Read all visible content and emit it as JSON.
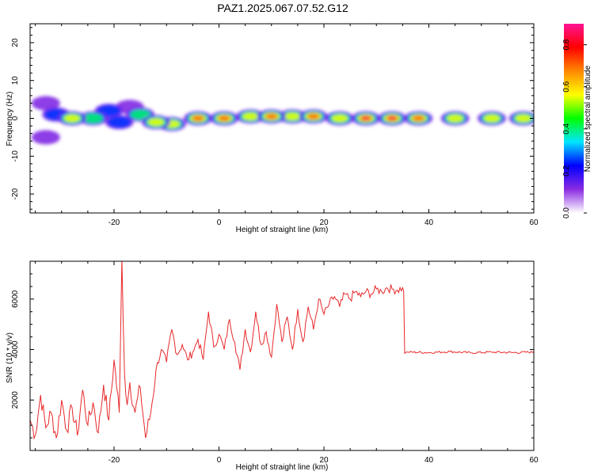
{
  "title": "PAZ1.2025.067.07.52.G12",
  "chart_data": [
    {
      "type": "heatmap",
      "xlabel": "Height of straight line (km)",
      "ylabel": "Frequency (Hz)",
      "xlim": [
        -36,
        60
      ],
      "ylim": [
        -25,
        25
      ],
      "xticks": [
        -20,
        0,
        20,
        40,
        60
      ],
      "yticks": [
        -20,
        -10,
        0,
        10,
        20
      ],
      "colorbar": {
        "label": "Normalized spectral amplitude",
        "ticks": [
          0.0,
          0.2,
          0.4,
          0.6,
          0.8
        ],
        "range": [
          0.0,
          0.9
        ],
        "colors": [
          "#ffffff",
          "#8a2be2",
          "#0000ff",
          "#00e5ff",
          "#00ff00",
          "#ffff00",
          "#ff8800",
          "#ff0000",
          "#ff1493"
        ]
      },
      "blobs": [
        {
          "x": -33,
          "y": 4,
          "a": 0.2
        },
        {
          "x": -33,
          "y": -5,
          "a": 0.15
        },
        {
          "x": -31,
          "y": 1,
          "a": 0.35
        },
        {
          "x": -28,
          "y": 0,
          "a": 0.55
        },
        {
          "x": -24,
          "y": 0,
          "a": 0.45
        },
        {
          "x": -21,
          "y": 2,
          "a": 0.25
        },
        {
          "x": -19,
          "y": -1,
          "a": 0.35
        },
        {
          "x": -17,
          "y": 3,
          "a": 0.2
        },
        {
          "x": -15,
          "y": 1,
          "a": 0.5
        },
        {
          "x": -12,
          "y": -1,
          "a": 0.6
        },
        {
          "x": -9,
          "y": -1.5,
          "a": 0.55
        },
        {
          "x": -4,
          "y": 0,
          "a": 0.8
        },
        {
          "x": 1,
          "y": 0,
          "a": 0.7
        },
        {
          "x": 6,
          "y": 0.5,
          "a": 0.6
        },
        {
          "x": 10,
          "y": 0.5,
          "a": 0.8
        },
        {
          "x": 14,
          "y": 0.5,
          "a": 0.55
        },
        {
          "x": 18,
          "y": 0.5,
          "a": 0.8
        },
        {
          "x": 23,
          "y": 0,
          "a": 0.6
        },
        {
          "x": 28,
          "y": 0,
          "a": 0.85
        },
        {
          "x": 33,
          "y": 0,
          "a": 0.85
        },
        {
          "x": 38,
          "y": 0,
          "a": 0.75
        },
        {
          "x": 45,
          "y": 0,
          "a": 0.65
        },
        {
          "x": 52,
          "y": 0,
          "a": 0.6
        },
        {
          "x": 58,
          "y": 0,
          "a": 0.6
        }
      ]
    },
    {
      "type": "line",
      "xlabel": "Height of straight line (km)",
      "ylabel": "SNR (10 * v/v)",
      "xlim": [
        -36,
        60
      ],
      "ylim": [
        0,
        7500
      ],
      "xticks": [
        -20,
        0,
        20,
        40,
        60
      ],
      "yticks": [
        2000,
        4000,
        6000
      ],
      "color": "#e8292b",
      "series": [
        {
          "x": [
            -36,
            -35,
            -34,
            -33,
            -32,
            -31,
            -30,
            -29,
            -28,
            -27,
            -26,
            -25,
            -24,
            -23,
            -22,
            -21,
            -20,
            -19,
            -18.5,
            -18,
            -17.5,
            -17,
            -16,
            -15,
            -14,
            -13,
            -12,
            -11,
            -10,
            -9,
            -8,
            -7,
            -6,
            -5,
            -4,
            -3,
            -2,
            -1,
            0,
            1,
            2,
            3,
            4,
            5,
            6,
            7,
            8,
            9,
            10,
            11,
            12,
            13,
            14,
            15,
            16,
            17,
            18,
            19,
            20,
            21,
            22,
            23,
            24,
            25,
            26,
            27,
            28,
            29,
            30,
            31,
            32,
            33,
            34,
            35,
            35.2,
            35.4,
            36,
            40,
            44,
            48,
            52,
            56,
            60
          ],
          "y": [
            1200,
            600,
            2200,
            900,
            1500,
            500,
            2000,
            800,
            1700,
            600,
            2400,
            1000,
            1900,
            700,
            2600,
            1200,
            3600,
            1500,
            7600,
            3000,
            1800,
            2700,
            1500,
            2500,
            500,
            1500,
            3200,
            4000,
            3500,
            4800,
            3800,
            4200,
            3600,
            3900,
            4400,
            3600,
            5500,
            4100,
            4600,
            4000,
            5200,
            4300,
            3200,
            4800,
            3900,
            5500,
            4200,
            4700,
            3700,
            5800,
            4300,
            5300,
            4000,
            5600,
            4300,
            5700,
            4800,
            6000,
            5400,
            5800,
            6100,
            5700,
            6200,
            6000,
            6300,
            6100,
            6300,
            6200,
            6400,
            6300,
            6450,
            6400,
            6350,
            6450,
            6300,
            3850,
            3900,
            3880,
            3920,
            3870,
            3900,
            3880,
            3900
          ]
        }
      ]
    }
  ]
}
